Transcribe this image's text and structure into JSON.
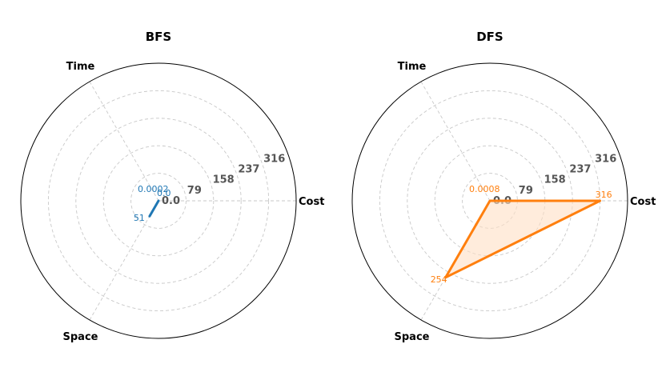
{
  "chart_data": [
    {
      "type": "radar",
      "title": "BFS",
      "axes": [
        "Cost",
        "Time",
        "Space"
      ],
      "rticks": [
        0.0,
        79,
        158,
        237,
        316
      ],
      "rlim": [
        0,
        395
      ],
      "grid": true,
      "series": [
        {
          "color": "#1f77b4",
          "fill": "#aec7e8",
          "values": [
            0.0,
            0.0002,
            51
          ],
          "labels": [
            "0.0",
            "0.0002",
            "51"
          ]
        }
      ]
    },
    {
      "type": "radar",
      "title": "DFS",
      "axes": [
        "Cost",
        "Time",
        "Space"
      ],
      "rticks": [
        0.0,
        79,
        158,
        237,
        316
      ],
      "rlim": [
        0,
        395
      ],
      "grid": true,
      "series": [
        {
          "color": "#ff7f0e",
          "fill": "#ffdfc4",
          "values": [
            316,
            0.0008,
            254
          ],
          "labels": [
            "316",
            "0.0008",
            "254"
          ]
        }
      ]
    }
  ]
}
